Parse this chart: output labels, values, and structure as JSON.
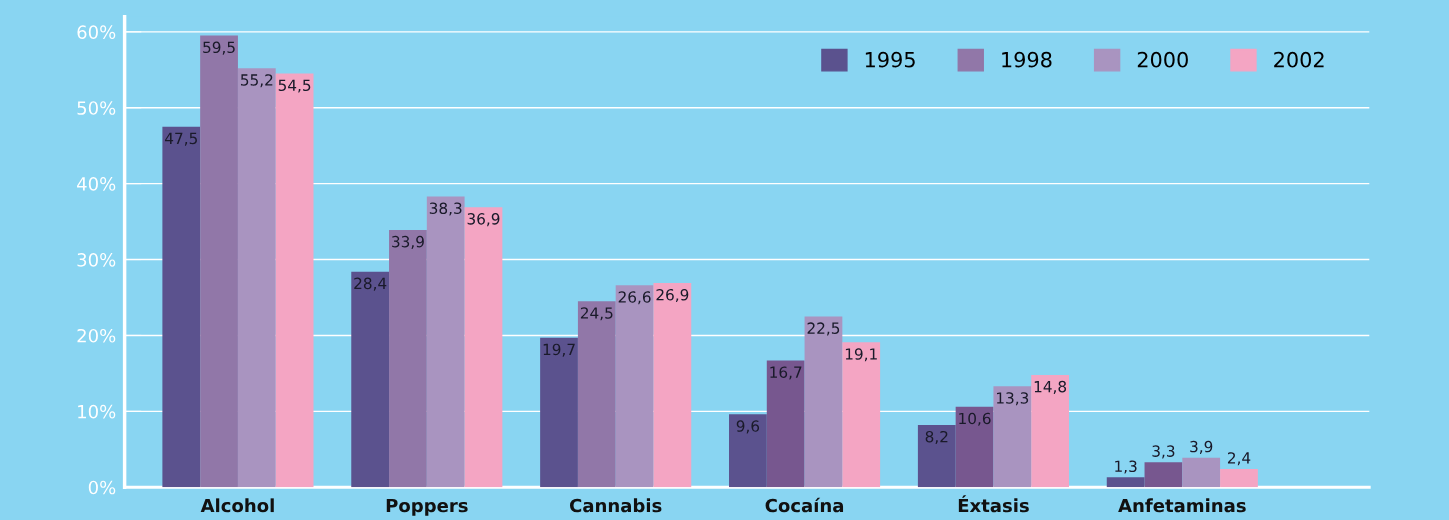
{
  "chart_data": {
    "type": "bar",
    "categories": [
      "Alcohol",
      "Poppers",
      "Cannabis",
      "Cocaína",
      "Éxtasis",
      "Anfetaminas"
    ],
    "series": [
      {
        "name": "1995",
        "color": "#5b528e",
        "values": [
          47.5,
          28.4,
          19.7,
          9.6,
          8.2,
          1.3
        ],
        "value_labels": [
          "47,5",
          "28,4",
          "19,7",
          "9,6",
          "8,2",
          "1,3"
        ]
      },
      {
        "name": "1998",
        "color": "#9177a8",
        "colors": [
          "#9177a8",
          "#9177a8",
          "#9177a8",
          "#77578f",
          "#77578f",
          "#77578f"
        ],
        "values": [
          59.5,
          33.9,
          24.5,
          16.7,
          10.6,
          3.3
        ],
        "value_labels": [
          "59,5",
          "33,9",
          "24,5",
          "16,7",
          "10,6",
          "3,3"
        ]
      },
      {
        "name": "2000",
        "color": "#a994c0",
        "values": [
          55.2,
          38.3,
          26.6,
          22.5,
          13.3,
          3.9
        ],
        "value_labels": [
          "55,2",
          "38,3",
          "26,6",
          "22,5",
          "13,3",
          "3,9"
        ]
      },
      {
        "name": "2002",
        "color": "#f4a5c3",
        "values": [
          54.5,
          36.9,
          26.9,
          19.1,
          14.8,
          2.4
        ],
        "value_labels": [
          "54,5",
          "36,9",
          "26,9",
          "19,1",
          "14,8",
          "2,4"
        ]
      }
    ],
    "ylim": [
      0,
      62
    ],
    "yticks": [
      {
        "value": 0,
        "label": "0%"
      },
      {
        "value": 10,
        "label": "10%"
      },
      {
        "value": 20,
        "label": "20%"
      },
      {
        "value": 30,
        "label": "30%"
      },
      {
        "value": 40,
        "label": "40%"
      },
      {
        "value": 50,
        "label": "50%"
      },
      {
        "value": 60,
        "label": "60%"
      }
    ],
    "grid": "y",
    "legend": "top right"
  }
}
